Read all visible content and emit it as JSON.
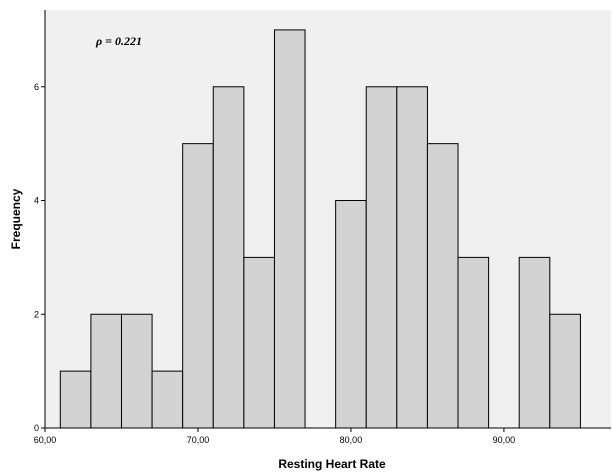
{
  "chart_data": {
    "type": "bar",
    "subtype": "histogram",
    "title": "",
    "xlabel": "Resting Heart Rate",
    "ylabel": "Frequency",
    "annotation": "ρ = 0.221",
    "xlim": [
      60,
      97
    ],
    "ylim": [
      0,
      7.35
    ],
    "x_ticks": [
      60,
      70,
      80,
      90
    ],
    "x_tick_labels": [
      "60,00",
      "70,00",
      "80,00",
      "90,00"
    ],
    "y_ticks": [
      0,
      2,
      4,
      6
    ],
    "y_tick_labels": [
      "0",
      "2",
      "4",
      "6"
    ],
    "bin_width": 2,
    "bins": [
      {
        "start": 61,
        "end": 63,
        "count": 1
      },
      {
        "start": 63,
        "end": 65,
        "count": 2
      },
      {
        "start": 65,
        "end": 67,
        "count": 2
      },
      {
        "start": 67,
        "end": 69,
        "count": 1
      },
      {
        "start": 69,
        "end": 71,
        "count": 5
      },
      {
        "start": 71,
        "end": 73,
        "count": 6
      },
      {
        "start": 73,
        "end": 75,
        "count": 3
      },
      {
        "start": 75,
        "end": 77,
        "count": 7
      },
      {
        "start": 77,
        "end": 79,
        "count": 0
      },
      {
        "start": 79,
        "end": 81,
        "count": 4
      },
      {
        "start": 81,
        "end": 83,
        "count": 6
      },
      {
        "start": 83,
        "end": 85,
        "count": 6
      },
      {
        "start": 85,
        "end": 87,
        "count": 5
      },
      {
        "start": 87,
        "end": 89,
        "count": 3
      },
      {
        "start": 89,
        "end": 91,
        "count": 0
      },
      {
        "start": 91,
        "end": 93,
        "count": 3
      },
      {
        "start": 93,
        "end": 95,
        "count": 2
      }
    ],
    "grid": false,
    "colors": {
      "plot_background": "#f0f0f0",
      "bar_fill": "#d3d3d3",
      "bar_stroke": "#000000"
    }
  }
}
